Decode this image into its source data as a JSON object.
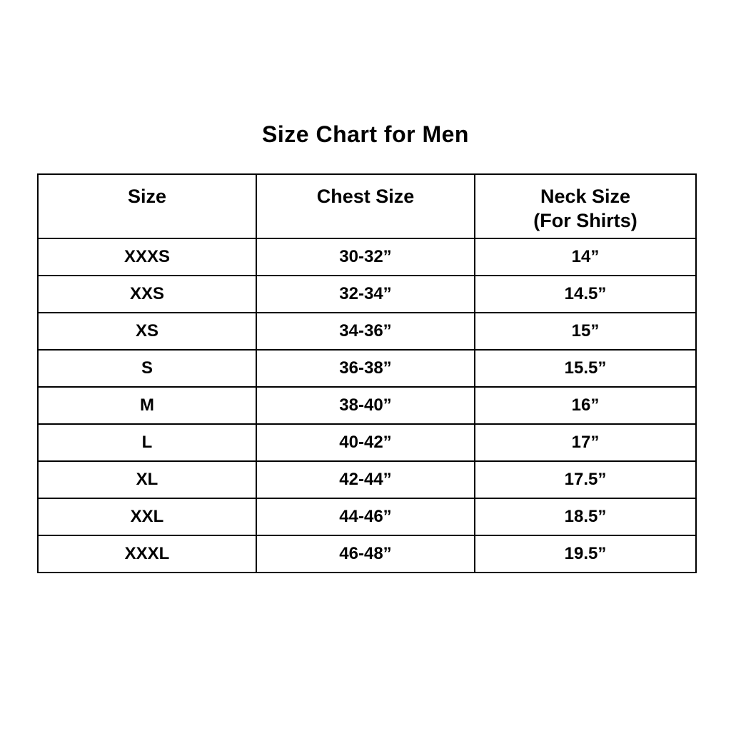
{
  "page": {
    "title": "Size Chart for Men"
  },
  "table": {
    "headers": {
      "size": "Size",
      "chest": "Chest Size",
      "neck_line1": "Neck Size",
      "neck_line2": "(For Shirts)"
    },
    "rows": [
      {
        "size": "XXXS",
        "chest": "30-32”",
        "neck": "14”"
      },
      {
        "size": "XXS",
        "chest": "32-34”",
        "neck": "14.5”"
      },
      {
        "size": "XS",
        "chest": "34-36”",
        "neck": "15”"
      },
      {
        "size": "S",
        "chest": "36-38”",
        "neck": "15.5”"
      },
      {
        "size": "M",
        "chest": "38-40”",
        "neck": "16”"
      },
      {
        "size": "L",
        "chest": "40-42”",
        "neck": "17”"
      },
      {
        "size": "XL",
        "chest": "42-44”",
        "neck": "17.5”"
      },
      {
        "size": "XXL",
        "chest": "44-46”",
        "neck": "18.5”"
      },
      {
        "size": "XXXL",
        "chest": "46-48”",
        "neck": "19.5”"
      }
    ]
  },
  "colors": {
    "text": "#000000",
    "border": "#000000",
    "background": "#ffffff"
  }
}
